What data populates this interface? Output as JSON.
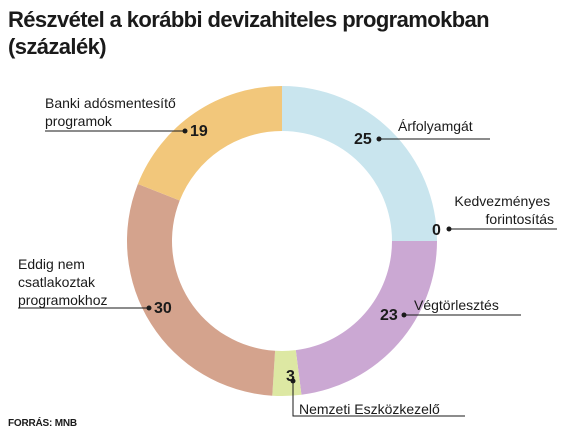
{
  "title_line1": "Részvétel a korábbi  devizahiteles programokban",
  "title_line2": "(százalék)",
  "source": "FORRÁS: MNB",
  "chart_data": {
    "type": "pie",
    "subtype": "donut",
    "unit": "%",
    "slices": [
      {
        "label": "Árfolyamgát",
        "value": 25,
        "color": "#c9e5ee"
      },
      {
        "label": "Kedvezményes forintosítás",
        "value": 0,
        "color": "#c9e5ee"
      },
      {
        "label": "Végtörlesztés",
        "value": 23,
        "color": "#cba8d3"
      },
      {
        "label": "Nemzeti Eszközkezelő",
        "value": 3,
        "color": "#dde8a3"
      },
      {
        "label": "Eddig nem csatlakoztak programokhoz",
        "value": 30,
        "color": "#d4a38d"
      },
      {
        "label": "Banki adósmentesítő programok",
        "value": 19,
        "color": "#f2c77b"
      }
    ]
  }
}
